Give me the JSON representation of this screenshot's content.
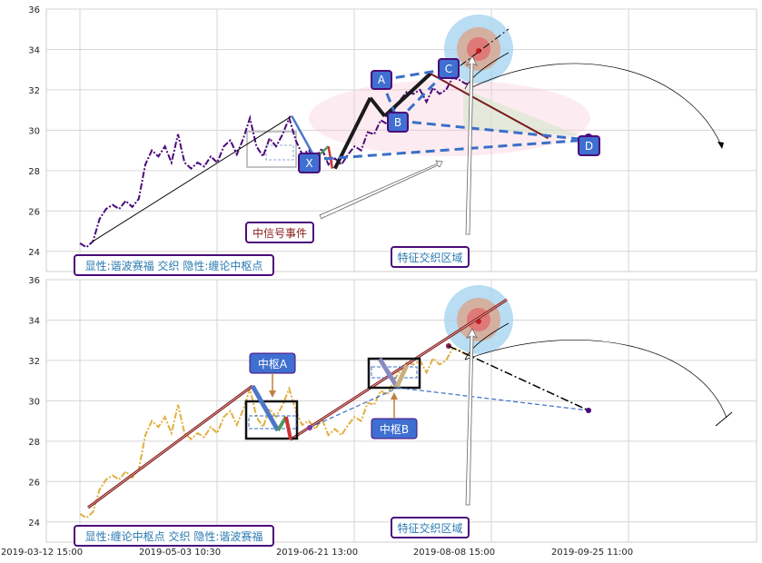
{
  "chart_data": [
    {
      "type": "line",
      "panel": "top",
      "ylim": [
        23,
        36
      ],
      "yticks": [
        24,
        26,
        28,
        30,
        32,
        34,
        36
      ],
      "grid": true,
      "price_series": {
        "name": "",
        "color": "#4b0a7a",
        "points": [
          [
            0.0,
            24.4
          ],
          [
            0.5,
            24.2
          ],
          [
            1.0,
            24.5
          ],
          [
            1.5,
            25.6
          ],
          [
            2.0,
            26.1
          ],
          [
            2.5,
            26.3
          ],
          [
            3.0,
            26.1
          ],
          [
            3.5,
            26.5
          ],
          [
            4.0,
            26.2
          ],
          [
            4.5,
            26.6
          ],
          [
            5.0,
            28.3
          ],
          [
            5.5,
            29.0
          ],
          [
            6.0,
            28.7
          ],
          [
            6.5,
            29.2
          ],
          [
            7.0,
            28.4
          ],
          [
            7.5,
            29.8
          ],
          [
            8.0,
            28.4
          ],
          [
            8.5,
            28.1
          ],
          [
            9.0,
            28.4
          ],
          [
            9.5,
            28.2
          ],
          [
            10.0,
            28.7
          ],
          [
            10.5,
            28.4
          ],
          [
            11.0,
            29.2
          ],
          [
            11.5,
            29.5
          ],
          [
            12.0,
            28.8
          ],
          [
            12.5,
            29.6
          ],
          [
            13.0,
            30.6
          ],
          [
            13.5,
            29.2
          ],
          [
            14.0,
            28.7
          ],
          [
            14.5,
            29.6
          ],
          [
            15.0,
            29.2
          ],
          [
            15.5,
            29.8
          ],
          [
            16.0,
            30.6
          ],
          [
            16.5,
            29.5
          ],
          [
            17.0,
            28.8
          ],
          [
            17.5,
            29.0
          ],
          [
            18.0,
            28.6
          ],
          [
            18.5,
            29.1
          ],
          [
            19.0,
            28.3
          ],
          [
            19.5,
            28.6
          ],
          [
            20.0,
            28.3
          ],
          [
            20.5,
            28.8
          ],
          [
            21.0,
            29.2
          ],
          [
            21.5,
            29.0
          ],
          [
            22.0,
            29.9
          ],
          [
            22.5,
            29.8
          ],
          [
            23.0,
            30.5
          ],
          [
            23.5,
            30.3
          ],
          [
            24.0,
            31.0
          ],
          [
            24.5,
            31.5
          ],
          [
            25.0,
            31.9
          ],
          [
            25.5,
            31.8
          ],
          [
            26.0,
            32.0
          ],
          [
            26.5,
            31.4
          ],
          [
            27.0,
            32.1
          ],
          [
            27.5,
            31.8
          ],
          [
            28.0,
            32.0
          ],
          [
            28.5,
            32.6
          ],
          [
            29.0,
            32.5
          ],
          [
            29.5,
            32.3
          ],
          [
            30.0,
            32.4
          ]
        ]
      },
      "waves": [
        {
          "from": [
            1.0,
            24.5
          ],
          "to": [
            16.2,
            30.7
          ],
          "color": "#000000",
          "width": 1
        },
        {
          "from": [
            16.2,
            30.7
          ],
          "to": [
            18.0,
            28.6
          ],
          "color": "#4c78c8",
          "width": 2.5
        },
        {
          "from": [
            18.0,
            28.6
          ],
          "to": [
            19.0,
            29.2
          ],
          "color": "#4f9a5a",
          "width": 2.5
        },
        {
          "from": [
            19.0,
            29.2
          ],
          "to": [
            19.3,
            28.1
          ],
          "color": "#cc3333",
          "width": 2.5
        },
        {
          "from": [
            19.5,
            28.1
          ],
          "to": [
            22.2,
            31.6
          ],
          "color": "#1a1a1a",
          "width": 4
        },
        {
          "from": [
            22.2,
            31.6
          ],
          "to": [
            23.3,
            30.7
          ],
          "color": "#1a1a1a",
          "width": 4
        },
        {
          "from": [
            23.3,
            30.7
          ],
          "to": [
            26.8,
            32.8
          ],
          "color": "#1a1a1a",
          "width": 4
        },
        {
          "from": [
            26.8,
            32.8
          ],
          "to": [
            35.8,
            29.6
          ],
          "color": "#7a1a1a",
          "width": 2
        }
      ],
      "harmonic_points": [
        {
          "label": "X",
          "x": 19.4,
          "y": 28.3
        },
        {
          "label": "A",
          "x": 22.2,
          "y": 31.6
        },
        {
          "label": "B",
          "x": 23.3,
          "y": 30.7
        },
        {
          "label": "C",
          "x": 26.8,
          "y": 32.8
        },
        {
          "label": "D",
          "x": 35.8,
          "y": 29.6
        }
      ],
      "annotations": [
        "中信号事件",
        "特征交织区域",
        "显性:谐波赛福 交织 隐性:缠论中枢点"
      ]
    },
    {
      "type": "line",
      "panel": "bottom",
      "ylim": [
        23,
        36
      ],
      "yticks": [
        24,
        26,
        28,
        30,
        32,
        34,
        36
      ],
      "grid": true,
      "price_series": {
        "name": "",
        "color": "#e0b040",
        "points": [
          [
            0.0,
            24.4
          ],
          [
            0.5,
            24.2
          ],
          [
            1.0,
            24.5
          ],
          [
            1.5,
            25.6
          ],
          [
            2.0,
            26.1
          ],
          [
            2.5,
            26.3
          ],
          [
            3.0,
            26.1
          ],
          [
            3.5,
            26.5
          ],
          [
            4.0,
            26.2
          ],
          [
            4.5,
            26.6
          ],
          [
            5.0,
            28.3
          ],
          [
            5.5,
            29.0
          ],
          [
            6.0,
            28.7
          ],
          [
            6.5,
            29.2
          ],
          [
            7.0,
            28.4
          ],
          [
            7.5,
            29.8
          ],
          [
            8.0,
            28.4
          ],
          [
            8.5,
            28.1
          ],
          [
            9.0,
            28.4
          ],
          [
            9.5,
            28.2
          ],
          [
            10.0,
            28.7
          ],
          [
            10.5,
            28.4
          ],
          [
            11.0,
            29.2
          ],
          [
            11.5,
            29.5
          ],
          [
            12.0,
            28.8
          ],
          [
            12.5,
            29.6
          ],
          [
            13.0,
            30.6
          ],
          [
            13.5,
            29.2
          ],
          [
            14.0,
            28.7
          ],
          [
            14.5,
            29.6
          ],
          [
            15.0,
            29.2
          ],
          [
            15.5,
            29.8
          ],
          [
            16.0,
            30.6
          ],
          [
            16.5,
            29.5
          ],
          [
            17.0,
            28.8
          ],
          [
            17.5,
            29.0
          ],
          [
            18.0,
            28.6
          ],
          [
            18.5,
            29.1
          ],
          [
            19.0,
            28.3
          ],
          [
            19.5,
            28.6
          ],
          [
            20.0,
            28.3
          ],
          [
            20.5,
            28.8
          ],
          [
            21.0,
            29.2
          ],
          [
            21.5,
            29.0
          ],
          [
            22.0,
            29.9
          ],
          [
            22.5,
            29.8
          ],
          [
            23.0,
            30.5
          ],
          [
            23.5,
            30.3
          ],
          [
            24.0,
            31.0
          ],
          [
            24.5,
            31.5
          ],
          [
            25.0,
            31.9
          ],
          [
            25.5,
            31.8
          ],
          [
            26.0,
            32.0
          ],
          [
            26.5,
            31.4
          ],
          [
            27.0,
            32.1
          ],
          [
            27.5,
            31.8
          ],
          [
            28.0,
            32.0
          ],
          [
            28.5,
            32.6
          ],
          [
            29.0,
            32.5
          ],
          [
            29.5,
            32.3
          ],
          [
            30.0,
            32.4
          ]
        ]
      },
      "annotations": [
        "中枢A",
        "中枢B",
        "特征交织区域",
        "显性:缠论中枢点 交织 隐性:谐波赛福"
      ]
    }
  ],
  "x_axis": {
    "tick_labels": [
      "2019-03-12 15:00",
      "2019-05-03 10:30",
      "2019-06-21 13:00",
      "2019-08-08 15:00",
      "2019-09-25 11:00"
    ]
  },
  "labels": {
    "x": "X",
    "a": "A",
    "b": "B",
    "c": "C",
    "d": "D",
    "signal_event": "中信号事件",
    "feature_zone_top": "特征交织区域",
    "feature_zone_bottom": "特征交织区域",
    "legend_top": "显性:谐波赛福 交织 隐性:缠论中枢点",
    "legend_bottom": "显性:缠论中枢点 交织 隐性:谐波赛福",
    "pivot_a": "中枢A",
    "pivot_b": "中枢B"
  },
  "colors": {
    "purple_line": "#4b0a7a",
    "gold_line": "#e0b040",
    "blue_dash": "#3a6fc8",
    "label_box_blue": "#3f6fd0",
    "label_border_purple": "#4b0a7a",
    "dark_red": "#8b1a1a",
    "text_blue": "#2a7ab0"
  }
}
